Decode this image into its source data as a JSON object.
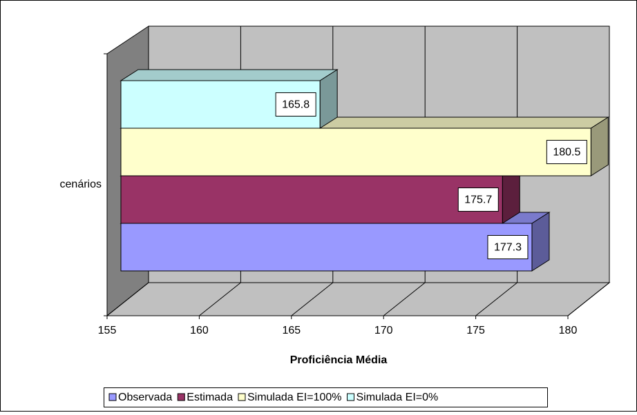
{
  "chart_data": {
    "type": "bar",
    "orientation": "horizontal",
    "categories": [
      "cenários"
    ],
    "series": [
      {
        "name": "Observada",
        "color": "#9999ff",
        "values": [
          177.3
        ]
      },
      {
        "name": "Estimada",
        "color": "#993366",
        "values": [
          175.7
        ]
      },
      {
        "name": "Simulada EI=100%",
        "color": "#ffffcc",
        "values": [
          180.5
        ]
      },
      {
        "name": "Simulada EI=0%",
        "color": "#ccffff",
        "values": [
          165.8
        ]
      }
    ],
    "xlabel": "Proficiência Média",
    "xlim": [
      155,
      180
    ],
    "xticks": [
      155,
      160,
      165,
      170,
      175,
      180
    ],
    "grid": true,
    "legend": "bottom"
  }
}
